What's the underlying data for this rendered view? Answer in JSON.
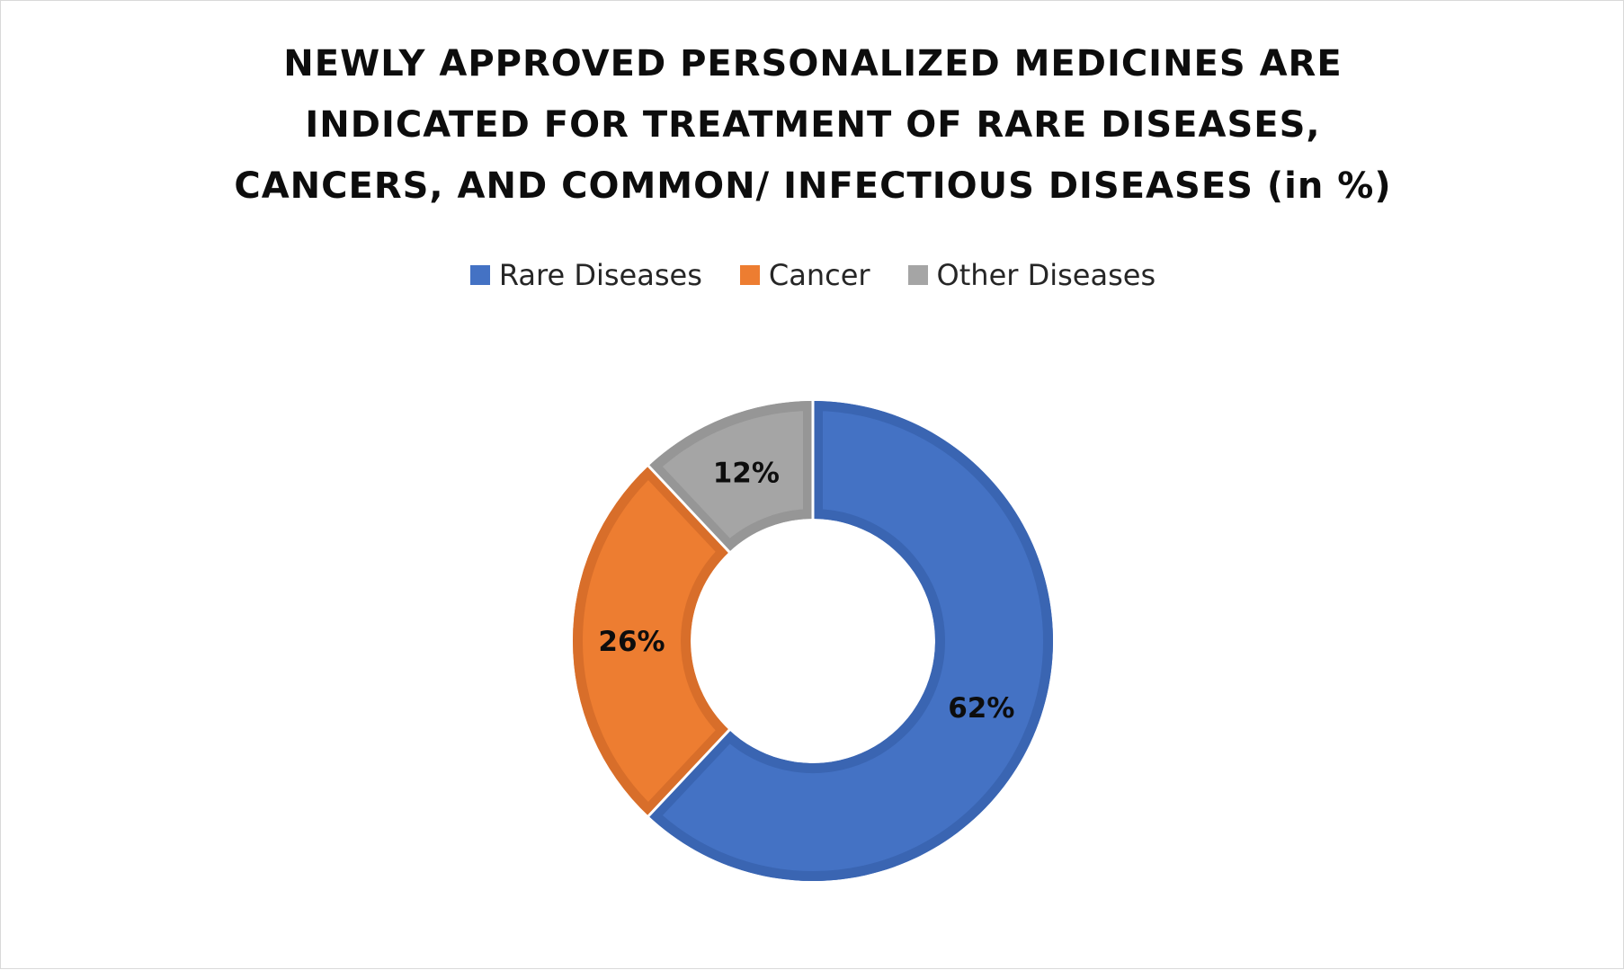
{
  "chart_data": {
    "type": "pie",
    "variant": "donut",
    "title_lines": [
      "NEWLY APPROVED PERSONALIZED MEDICINES ARE",
      "INDICATED FOR TREATMENT OF RARE DISEASES,",
      "CANCERS, AND COMMON/ INFECTIOUS DISEASES (in %)"
    ],
    "legend_position": "top",
    "slices": [
      {
        "name": "Rare Diseases",
        "value": 62,
        "label": "62%",
        "color": "#4472C4",
        "border": "#3A65B2"
      },
      {
        "name": "Cancer",
        "value": 26,
        "label": "26%",
        "color": "#ED7D31",
        "border": "#D86E2A"
      },
      {
        "name": "Other Diseases",
        "value": 12,
        "label": "12%",
        "color": "#A5A5A5",
        "border": "#969696"
      }
    ]
  }
}
